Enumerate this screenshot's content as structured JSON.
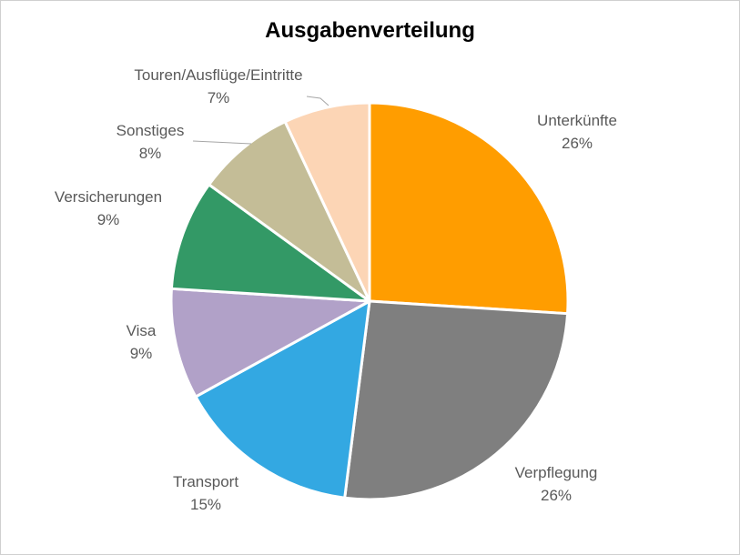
{
  "chart_data": {
    "type": "pie",
    "title": "Ausgabenverteilung",
    "slices": [
      {
        "label": "Unterkünfte",
        "value": 26,
        "value_label": "26%",
        "color": "#FF9D00"
      },
      {
        "label": "Verpflegung",
        "value": 26,
        "value_label": "26%",
        "color": "#7F7F7F"
      },
      {
        "label": "Transport",
        "value": 15,
        "value_label": "15%",
        "color": "#33A8E2"
      },
      {
        "label": "Visa",
        "value": 9,
        "value_label": "9%",
        "color": "#B1A1C8"
      },
      {
        "label": "Versicherungen",
        "value": 9,
        "value_label": "9%",
        "color": "#339966"
      },
      {
        "label": "Sonstiges",
        "value": 8,
        "value_label": "8%",
        "color": "#C4BD97"
      },
      {
        "label": "Touren/Ausflüge/Eintritte",
        "value": 7,
        "value_label": "7%",
        "color": "#FCD5B5"
      }
    ],
    "start_angle": "12 o'clock",
    "direction": "clockwise"
  }
}
